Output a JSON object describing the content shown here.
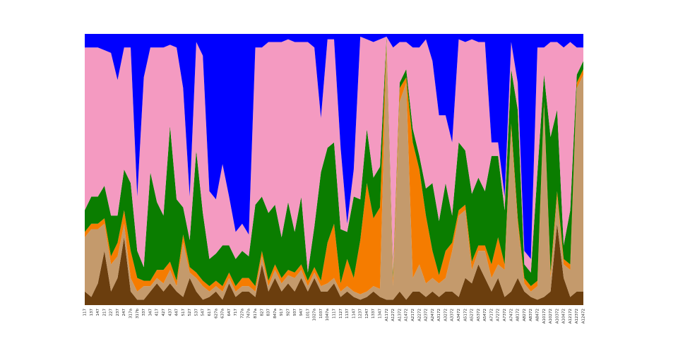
{
  "chart_data": {
    "type": "area",
    "stacked": true,
    "ylim": [
      0,
      100
    ],
    "categories": [
      "117",
      "137",
      "147",
      "217",
      "227",
      "237",
      "247",
      "317a",
      "317b",
      "337",
      "347",
      "417",
      "427",
      "437",
      "447",
      "517",
      "527",
      "537",
      "547",
      "617",
      "627a",
      "637a",
      "647",
      "717",
      "727a",
      "747a",
      "817a",
      "827",
      "837",
      "847a",
      "917",
      "927",
      "937",
      "947",
      "1017",
      "1027a",
      "1037",
      "1047a",
      "1117",
      "1127",
      "1137",
      "1147",
      "1237",
      "1247",
      "1337",
      "1347",
      "A1172",
      "A1272",
      "A1372",
      "A1472",
      "A2172",
      "A2272",
      "A2372",
      "A2472",
      "A3172",
      "A3272",
      "A3372",
      "A3472",
      "A5172",
      "A5272",
      "A5372",
      "A5472",
      "A7172",
      "A7272",
      "A7372",
      "A7472",
      "A8172",
      "A8272",
      "A8372",
      "A8472",
      "A10172",
      "A10272",
      "A10372",
      "A10472",
      "A12172",
      "A12372",
      "A12472"
    ],
    "series": [
      {
        "color": "#6b3e0e",
        "values": [
          5,
          3,
          8,
          20,
          5,
          10,
          25,
          5,
          2,
          2,
          5,
          8,
          5,
          8,
          5,
          3,
          10,
          5,
          2,
          3,
          5,
          2,
          8,
          3,
          5,
          5,
          3,
          15,
          5,
          10,
          5,
          8,
          5,
          10,
          5,
          10,
          5,
          5,
          8,
          3,
          5,
          3,
          2,
          3,
          5,
          3,
          2,
          2,
          5,
          2,
          5,
          5,
          3,
          5,
          3,
          5,
          5,
          3,
          10,
          8,
          15,
          10,
          5,
          10,
          3,
          5,
          10,
          5,
          3,
          2,
          3,
          5,
          30,
          10,
          3,
          5,
          5
        ]
      },
      {
        "color": "#c49a6c",
        "values": [
          20,
          25,
          20,
          10,
          10,
          8,
          5,
          5,
          3,
          5,
          2,
          2,
          3,
          5,
          2,
          20,
          2,
          5,
          5,
          2,
          2,
          3,
          2,
          2,
          2,
          2,
          2,
          3,
          2,
          3,
          3,
          3,
          5,
          3,
          2,
          2,
          2,
          3,
          2,
          2,
          2,
          2,
          2,
          2,
          2,
          3,
          95,
          5,
          70,
          80,
          5,
          10,
          5,
          5,
          5,
          5,
          15,
          30,
          25,
          5,
          5,
          10,
          5,
          5,
          10,
          60,
          20,
          3,
          2,
          5,
          70,
          5,
          10,
          5,
          10,
          75,
          80
        ]
      },
      {
        "color": "#f57c00",
        "values": [
          2,
          2,
          2,
          2,
          3,
          5,
          5,
          10,
          5,
          2,
          2,
          3,
          5,
          3,
          2,
          3,
          2,
          2,
          2,
          2,
          2,
          2,
          2,
          2,
          3,
          3,
          2,
          2,
          2,
          2,
          2,
          2,
          2,
          2,
          2,
          2,
          2,
          15,
          20,
          3,
          10,
          5,
          20,
          40,
          25,
          30,
          1,
          3,
          5,
          2,
          50,
          35,
          25,
          10,
          3,
          10,
          3,
          2,
          2,
          3,
          2,
          2,
          5,
          10,
          2,
          2,
          2,
          2,
          2,
          2,
          2,
          2,
          2,
          2,
          2,
          2,
          2
        ]
      },
      {
        "color": "#0a7d00",
        "values": [
          8,
          10,
          10,
          12,
          15,
          10,
          15,
          25,
          10,
          5,
          40,
          25,
          20,
          50,
          30,
          10,
          10,
          45,
          25,
          10,
          10,
          15,
          10,
          10,
          10,
          8,
          30,
          20,
          25,
          22,
          15,
          25,
          15,
          25,
          3,
          15,
          40,
          35,
          30,
          20,
          10,
          30,
          15,
          20,
          15,
          15,
          1,
          2,
          2,
          3,
          5,
          5,
          10,
          25,
          20,
          25,
          10,
          25,
          20,
          25,
          25,
          20,
          40,
          30,
          20,
          20,
          40,
          5,
          5,
          40,
          10,
          50,
          30,
          5,
          20,
          3,
          3
        ]
      },
      {
        "color": "#f49ac1",
        "values": [
          60,
          55,
          55,
          50,
          60,
          50,
          45,
          50,
          20,
          70,
          46,
          57,
          62,
          30,
          56,
          44,
          16,
          40,
          58,
          25,
          20,
          30,
          18,
          10,
          10,
          8,
          58,
          55,
          63,
          60,
          72,
          60,
          70,
          57,
          85,
          66,
          20,
          40,
          38,
          30,
          3,
          10,
          60,
          33,
          50,
          47,
          0,
          83,
          15,
          10,
          30,
          40,
          55,
          45,
          39,
          25,
          27,
          38,
          40,
          57,
          50,
          55,
          5,
          5,
          5,
          10,
          10,
          5,
          5,
          46,
          10,
          35,
          25,
          73,
          62,
          10,
          5
        ]
      },
      {
        "color": "#0000ff",
        "values": [
          5,
          5,
          5,
          6,
          7,
          17,
          5,
          5,
          60,
          16,
          5,
          5,
          5,
          4,
          5,
          20,
          60,
          3,
          8,
          58,
          61,
          48,
          60,
          73,
          70,
          74,
          5,
          5,
          3,
          3,
          3,
          2,
          3,
          3,
          3,
          5,
          31,
          2,
          2,
          42,
          70,
          50,
          1,
          2,
          3,
          2,
          1,
          5,
          3,
          3,
          5,
          5,
          2,
          10,
          30,
          30,
          40,
          2,
          3,
          2,
          3,
          3,
          40,
          40,
          60,
          3,
          18,
          80,
          83,
          5,
          5,
          3,
          3,
          5,
          3,
          5,
          5
        ]
      }
    ]
  }
}
